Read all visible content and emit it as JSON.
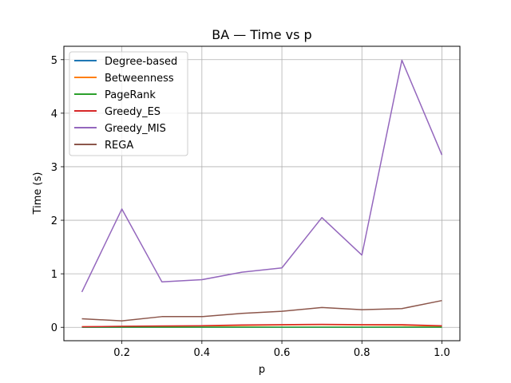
{
  "chart_data": {
    "type": "line",
    "title": "BA — Time vs p",
    "xlabel": "p",
    "ylabel": "Time (s)",
    "x": [
      0.1,
      0.2,
      0.3,
      0.4,
      0.5,
      0.6,
      0.7,
      0.8,
      0.9,
      1.0
    ],
    "xlim": [
      0.055,
      1.045
    ],
    "ylim": [
      -0.25,
      5.25
    ],
    "xticks": [
      0.2,
      0.4,
      0.6,
      0.8,
      1.0
    ],
    "xtick_labels": [
      "0.2",
      "0.4",
      "0.6",
      "0.8",
      "1.0"
    ],
    "yticks": [
      0,
      1,
      2,
      3,
      4,
      5
    ],
    "ytick_labels": [
      "0",
      "1",
      "2",
      "3",
      "4",
      "5"
    ],
    "grid": true,
    "legend_position": "top-left",
    "series": [
      {
        "name": "Degree-based",
        "color": "#1f77b4",
        "values": [
          0.002,
          0.002,
          0.002,
          0.002,
          0.002,
          0.002,
          0.002,
          0.002,
          0.002,
          0.002
        ]
      },
      {
        "name": "Betweenness",
        "color": "#ff7f0e",
        "values": [
          0.01,
          0.015,
          0.02,
          0.025,
          0.035,
          0.045,
          0.05,
          0.045,
          0.04,
          0.02
        ]
      },
      {
        "name": "PageRank",
        "color": "#2ca02c",
        "values": [
          0.003,
          0.003,
          0.003,
          0.003,
          0.003,
          0.003,
          0.003,
          0.003,
          0.003,
          0.003
        ]
      },
      {
        "name": "Greedy_ES",
        "color": "#d62728",
        "values": [
          0.01,
          0.02,
          0.025,
          0.03,
          0.045,
          0.05,
          0.055,
          0.05,
          0.05,
          0.03
        ]
      },
      {
        "name": "Greedy_MIS",
        "color": "#9467bd",
        "values": [
          0.66,
          2.21,
          0.85,
          0.89,
          1.03,
          1.11,
          2.05,
          1.35,
          4.99,
          3.22
        ]
      },
      {
        "name": "REGA",
        "color": "#8c564b",
        "values": [
          0.16,
          0.12,
          0.2,
          0.2,
          0.26,
          0.3,
          0.37,
          0.33,
          0.35,
          0.5
        ]
      }
    ]
  }
}
